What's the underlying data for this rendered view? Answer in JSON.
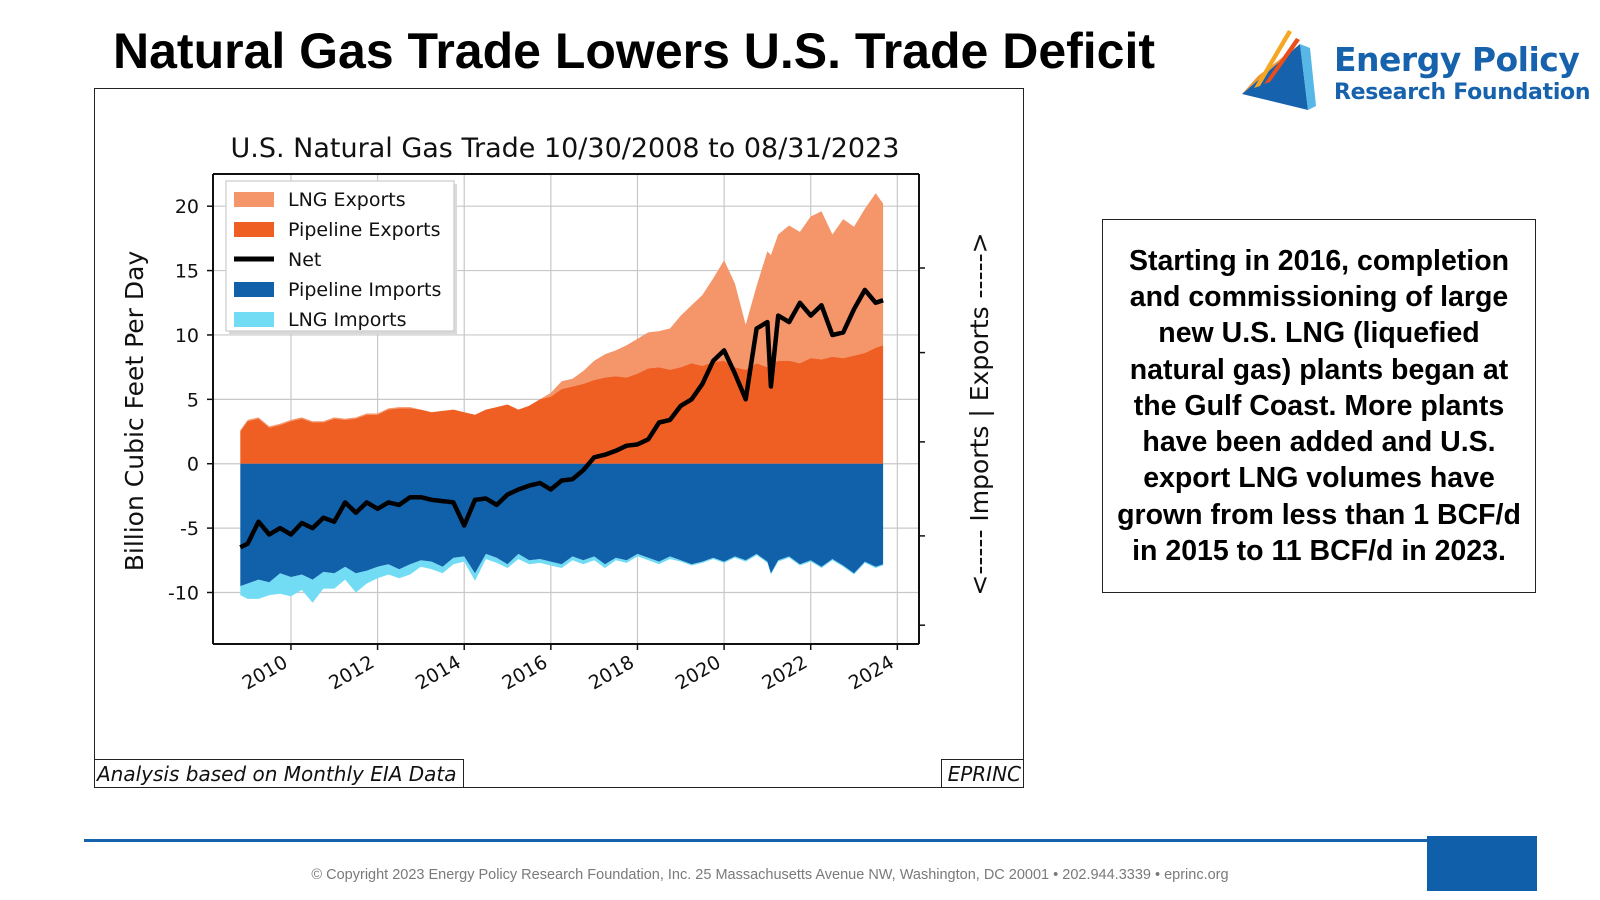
{
  "slide": {
    "title": "Natural Gas Trade Lowers U.S. Trade Deficit",
    "logo": {
      "line1": "Energy Policy",
      "line2": "Research Foundation"
    },
    "text_box": "Starting in 2016, completion and commissioning of large new U.S. LNG (liquefied natural gas) plants began at the Gulf Coast. More plants have been added and U.S. export LNG volumes have grown from less than 1 BCF/d in 2015 to 11 BCF/d in 2023.",
    "chart_note_left": "Analysis based on Monthly EIA Data",
    "chart_note_right": "EPRINC",
    "footer": "© Copyright 2023 Energy Policy Research Foundation, Inc. 25 Massachusetts Avenue NW, Washington, DC 20001 • 202.944.3339 • eprinc.org"
  },
  "colors": {
    "lng_exports": "#f4956a",
    "pipeline_exports": "#ef5f23",
    "net": "#000000",
    "pipeline_imports": "#1160aa",
    "lng_imports": "#72dcf5",
    "brand_blue": "#1762ad"
  },
  "chart_data": {
    "type": "area",
    "title": "U.S. Natural Gas Trade 10/30/2008 to 08/31/2023",
    "ylabel": "Billion Cubic Feet Per Day",
    "right_label": "<----- Imports | Exports ----->",
    "xlim": [
      2008.2,
      2024.5
    ],
    "ylim": [
      -14,
      22.5
    ],
    "yticks": [
      -10,
      -5,
      0,
      5,
      10,
      15,
      20
    ],
    "xticks": [
      2010,
      2012,
      2014,
      2016,
      2018,
      2020,
      2022,
      2024
    ],
    "grid": true,
    "legend_position": "upper-left",
    "x": [
      2008.83,
      2009.0,
      2009.25,
      2009.5,
      2009.75,
      2010.0,
      2010.25,
      2010.5,
      2010.75,
      2011.0,
      2011.25,
      2011.5,
      2011.75,
      2012.0,
      2012.25,
      2012.5,
      2012.75,
      2013.0,
      2013.25,
      2013.5,
      2013.75,
      2014.0,
      2014.25,
      2014.5,
      2014.75,
      2015.0,
      2015.25,
      2015.5,
      2015.75,
      2016.0,
      2016.25,
      2016.5,
      2016.75,
      2017.0,
      2017.25,
      2017.5,
      2017.75,
      2018.0,
      2018.25,
      2018.5,
      2018.75,
      2019.0,
      2019.25,
      2019.5,
      2019.75,
      2020.0,
      2020.25,
      2020.5,
      2020.75,
      2021.0,
      2021.08,
      2021.25,
      2021.5,
      2021.75,
      2022.0,
      2022.25,
      2022.5,
      2022.75,
      2023.0,
      2023.25,
      2023.5,
      2023.67
    ],
    "series": [
      {
        "name": "LNG Exports",
        "stack": "pos",
        "values": [
          0.1,
          0.1,
          0.1,
          0.1,
          0.1,
          0.1,
          0.1,
          0.1,
          0.1,
          0.1,
          0.1,
          0.1,
          0.1,
          0.1,
          0.1,
          0.1,
          0.1,
          0.0,
          0.0,
          0.0,
          0.0,
          0.0,
          0.0,
          0.0,
          0.0,
          0.0,
          0.0,
          0.0,
          0.0,
          0.3,
          0.6,
          0.6,
          1.0,
          1.5,
          1.8,
          2.0,
          2.5,
          2.7,
          2.8,
          2.8,
          3.2,
          4.0,
          4.5,
          5.5,
          6.5,
          7.8,
          6.5,
          3.5,
          6.0,
          9.0,
          8.5,
          9.8,
          10.5,
          10.2,
          11.0,
          11.5,
          9.5,
          10.8,
          10.0,
          11.2,
          12.0,
          11.0
        ]
      },
      {
        "name": "Pipeline Exports",
        "stack": "pos",
        "values": [
          2.5,
          3.3,
          3.5,
          2.8,
          3.0,
          3.3,
          3.5,
          3.2,
          3.2,
          3.5,
          3.4,
          3.5,
          3.8,
          3.8,
          4.2,
          4.3,
          4.3,
          4.2,
          4.0,
          4.1,
          4.2,
          4.0,
          3.8,
          4.2,
          4.4,
          4.6,
          4.2,
          4.5,
          5.0,
          5.2,
          5.8,
          6.0,
          6.2,
          6.5,
          6.7,
          6.8,
          6.7,
          7.0,
          7.4,
          7.5,
          7.3,
          7.5,
          7.8,
          7.6,
          7.9,
          8.0,
          7.5,
          7.3,
          7.8,
          7.5,
          7.7,
          8.0,
          8.0,
          7.8,
          8.2,
          8.1,
          8.3,
          8.2,
          8.4,
          8.6,
          9.0,
          9.2
        ]
      },
      {
        "name": "Pipeline Imports",
        "stack": "neg",
        "values": [
          -9.5,
          -9.3,
          -9.0,
          -9.2,
          -8.5,
          -8.8,
          -8.6,
          -9.0,
          -8.4,
          -8.5,
          -8.0,
          -8.5,
          -8.3,
          -8.0,
          -7.8,
          -8.2,
          -7.8,
          -7.5,
          -7.6,
          -8.0,
          -7.3,
          -7.2,
          -8.5,
          -7.0,
          -7.3,
          -7.8,
          -7.0,
          -7.5,
          -7.4,
          -7.6,
          -7.8,
          -7.2,
          -7.5,
          -7.2,
          -7.8,
          -7.3,
          -7.5,
          -7.0,
          -7.3,
          -7.6,
          -7.2,
          -7.5,
          -7.8,
          -7.6,
          -7.3,
          -7.6,
          -7.2,
          -7.5,
          -7.0,
          -7.6,
          -8.5,
          -7.5,
          -7.2,
          -7.8,
          -7.5,
          -8.0,
          -7.4,
          -7.9,
          -8.5,
          -7.6,
          -8.0,
          -7.8
        ]
      },
      {
        "name": "LNG Imports",
        "stack": "neg",
        "values": [
          -0.7,
          -1.2,
          -1.5,
          -1.0,
          -1.6,
          -1.5,
          -1.2,
          -1.8,
          -1.3,
          -1.2,
          -1.0,
          -1.5,
          -1.0,
          -0.9,
          -0.8,
          -0.7,
          -0.8,
          -0.5,
          -0.6,
          -0.5,
          -0.5,
          -0.4,
          -0.6,
          -0.4,
          -0.4,
          -0.3,
          -0.4,
          -0.3,
          -0.3,
          -0.3,
          -0.3,
          -0.3,
          -0.3,
          -0.3,
          -0.3,
          -0.2,
          -0.2,
          -0.2,
          -0.2,
          -0.2,
          -0.2,
          -0.1,
          -0.1,
          -0.1,
          -0.1,
          -0.1,
          -0.1,
          -0.1,
          -0.1,
          -0.1,
          -0.1,
          -0.1,
          -0.1,
          -0.1,
          -0.1,
          -0.1,
          -0.1,
          -0.1,
          -0.1,
          -0.1,
          -0.1,
          -0.1
        ]
      },
      {
        "name": "Net",
        "type": "line",
        "values": [
          -6.5,
          -6.2,
          -4.5,
          -5.5,
          -5.0,
          -5.5,
          -4.6,
          -5.0,
          -4.2,
          -4.5,
          -3.0,
          -3.8,
          -3.0,
          -3.5,
          -3.0,
          -3.2,
          -2.6,
          -2.6,
          -2.8,
          -2.9,
          -3.0,
          -4.8,
          -2.8,
          -2.7,
          -3.2,
          -2.4,
          -2.0,
          -1.7,
          -1.5,
          -2.0,
          -1.3,
          -1.2,
          -0.5,
          0.5,
          0.7,
          1.0,
          1.4,
          1.5,
          1.9,
          3.2,
          3.4,
          4.5,
          5.0,
          6.2,
          8.0,
          8.8,
          7.0,
          5.0,
          10.5,
          11.0,
          6.0,
          11.5,
          11.0,
          12.5,
          11.5,
          12.3,
          10.0,
          10.2,
          12.0,
          13.5,
          12.5,
          12.7
        ]
      }
    ]
  }
}
